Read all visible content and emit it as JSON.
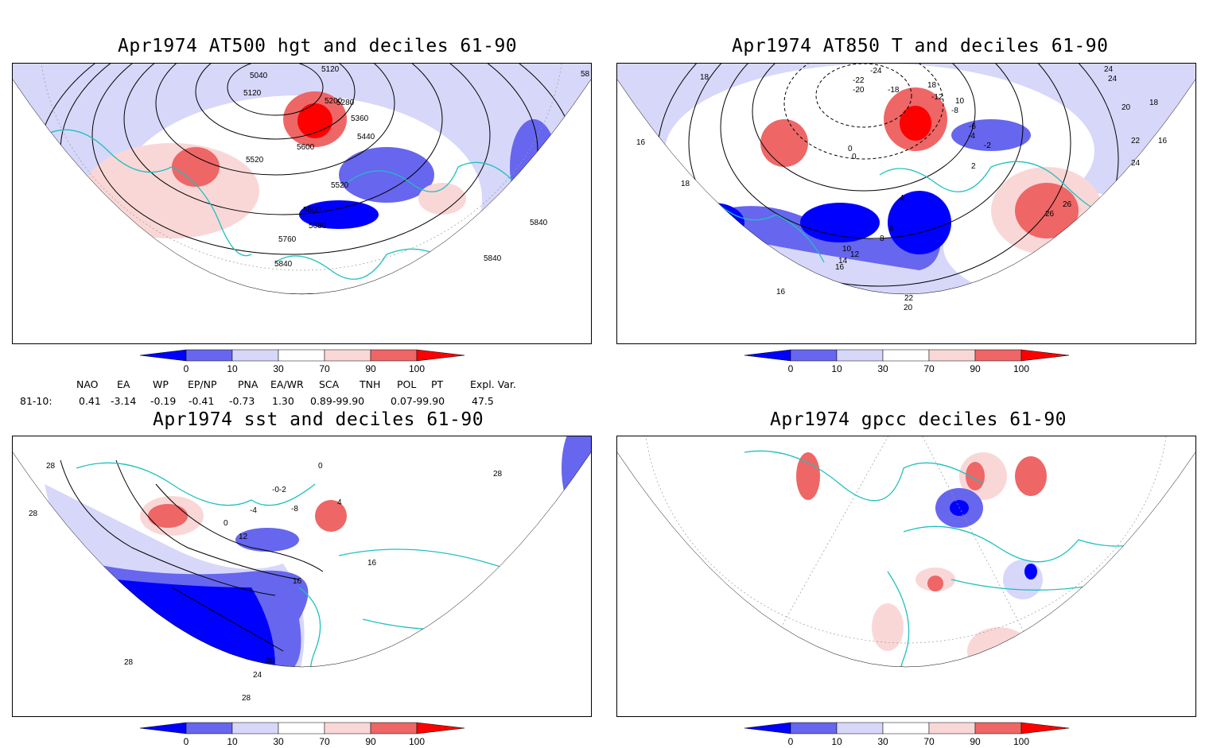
{
  "panels": [
    {
      "id": "p1",
      "title": "Apr1974 AT500 hgt and deciles 61-90",
      "contour_labels": [
        "5040",
        "5120",
        "5120",
        "5200",
        "5280",
        "5360",
        "5440",
        "5520",
        "5520",
        "5600",
        "5600",
        "5680",
        "5760",
        "5840",
        "5840",
        "5840",
        "58"
      ]
    },
    {
      "id": "p2",
      "title": "Apr1974 AT850 T and deciles 61-90",
      "contour_labels": [
        "-24",
        "-22",
        "-20",
        "-18",
        "18",
        "-12",
        "10",
        "-8",
        "-6",
        "-4",
        "-2",
        "0",
        "0",
        "2",
        "4",
        "6",
        "8",
        "10",
        "12",
        "14",
        "16",
        "16",
        "16",
        "16",
        "18",
        "18",
        "18",
        "20",
        "20",
        "22",
        "22",
        "24",
        "24",
        "24",
        "26",
        "26"
      ]
    },
    {
      "id": "p3",
      "title": "Apr1974 sst and deciles 61-90",
      "contour_labels": [
        "28",
        "28",
        "28",
        "28",
        "0",
        "-0-2",
        "-4",
        "-8",
        "4",
        "0",
        "12",
        "16",
        "16",
        "20",
        "24",
        "28"
      ]
    },
    {
      "id": "p4",
      "title": "Apr1974 gpcc deciles 61-90",
      "contour_labels": []
    }
  ],
  "colorbar": {
    "ticks": [
      "0",
      "10",
      "30",
      "70",
      "90",
      "100"
    ],
    "colors": [
      "#0000ff",
      "#6666ee",
      "#d7d7fa",
      "#ffffff",
      "#fad7d7",
      "#ee6666",
      "#ff0000"
    ]
  },
  "indices": {
    "headers": [
      "NAO",
      "EA",
      "WP",
      "EP/NP",
      "PNA",
      "EA/WR",
      "SCA",
      "TNH",
      "POL",
      "PT",
      "Expl. Var."
    ],
    "row_label": "81-10:",
    "values": [
      "0.41",
      "-3.14",
      "-0.19",
      "-0.41",
      "-0.73",
      "1.30",
      "0.89-99.90",
      "",
      "0.07-99.90",
      "",
      "47.5"
    ]
  }
}
